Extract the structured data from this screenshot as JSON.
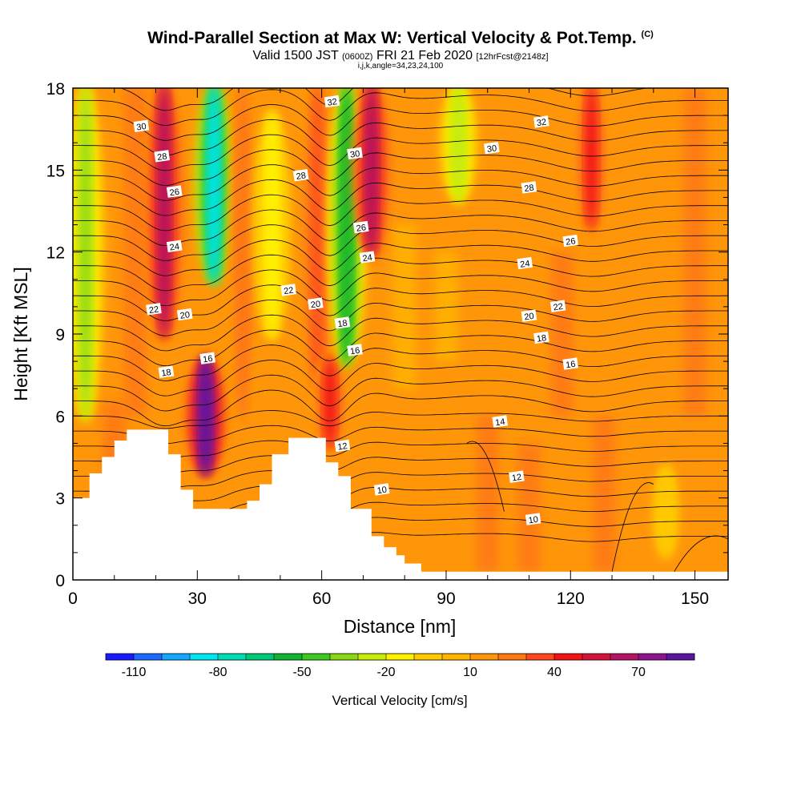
{
  "chart_data": {
    "type": "heatmap",
    "title": "Wind-Parallel Section at Max W: Vertical Velocity & Pot.Temp.",
    "title_mark": "(C)",
    "subtitle_main": "Valid 1500 JST",
    "subtitle_utc": "(0600Z)",
    "subtitle_date": "FRI 21 Feb 2020",
    "subtitle_fcst": "[12hrFcst@2148z]",
    "subtitle2": "i,j,k,angle=34,23,24,100",
    "xlabel": "Distance [nm]",
    "ylabel": "Height [Kft MSL]",
    "xlim": [
      0,
      158
    ],
    "ylim": [
      0,
      18
    ],
    "x_ticks": [
      "0",
      "30",
      "60",
      "90",
      "120",
      "150"
    ],
    "y_ticks": [
      "0",
      "3",
      "6",
      "9",
      "12",
      "15",
      "18"
    ],
    "colorbar": {
      "title": "Vertical Velocity [cm/s]",
      "labels": [
        "-110",
        "-80",
        "-50",
        "-20",
        "10",
        "40",
        "70"
      ],
      "colors": [
        "#1a1aff",
        "#1a6aff",
        "#12a8ff",
        "#00e6f0",
        "#00dcb4",
        "#00c878",
        "#10b432",
        "#3cc81e",
        "#8cd714",
        "#c8eb0a",
        "#fff000",
        "#ffc800",
        "#ffb400",
        "#ff960a",
        "#ff7814",
        "#ff461e",
        "#f01414",
        "#d2143c",
        "#b41464",
        "#8c148c",
        "#5a14a0"
      ]
    },
    "columns": [
      {
        "x": 3,
        "w": -40,
        "top": 18,
        "bottom": 6
      },
      {
        "x": 22,
        "w": 55,
        "top": 18,
        "bottom": 9
      },
      {
        "x": 32,
        "w": 80,
        "top": 8,
        "bottom": 4
      },
      {
        "x": 34,
        "w": -90,
        "top": 18,
        "bottom": 11
      },
      {
        "x": 41,
        "w": 20,
        "top": 18,
        "bottom": 6
      },
      {
        "x": 48,
        "w": -25,
        "top": 17,
        "bottom": 9
      },
      {
        "x": 59,
        "w": 25,
        "top": 18,
        "bottom": 7
      },
      {
        "x": 62,
        "w": 35,
        "top": 8,
        "bottom": 5
      },
      {
        "x": 66,
        "w": -60,
        "top": 18,
        "bottom": 8
      },
      {
        "x": 72,
        "w": 55,
        "top": 18,
        "bottom": 12
      },
      {
        "x": 93,
        "w": -30,
        "top": 18,
        "bottom": 14
      },
      {
        "x": 125,
        "w": 35,
        "top": 18,
        "bottom": 13
      },
      {
        "x": 143,
        "w": -15,
        "top": 4,
        "bottom": 1
      }
    ],
    "terrain": [
      [
        0,
        3
      ],
      [
        4,
        3
      ],
      [
        4,
        3.9
      ],
      [
        7,
        3.9
      ],
      [
        7,
        4.5
      ],
      [
        10,
        4.5
      ],
      [
        10,
        5.1
      ],
      [
        13,
        5.1
      ],
      [
        13,
        5.5
      ],
      [
        23,
        5.5
      ],
      [
        23,
        4.6
      ],
      [
        26,
        4.6
      ],
      [
        26,
        3.3
      ],
      [
        29,
        3.3
      ],
      [
        29,
        2.6
      ],
      [
        42,
        2.6
      ],
      [
        42,
        2.9
      ],
      [
        45,
        2.9
      ],
      [
        45,
        3.5
      ],
      [
        48,
        3.5
      ],
      [
        48,
        4.6
      ],
      [
        52,
        4.6
      ],
      [
        52,
        5.2
      ],
      [
        61,
        5.2
      ],
      [
        61,
        4.3
      ],
      [
        64,
        4.3
      ],
      [
        64,
        3.8
      ],
      [
        67,
        3.8
      ],
      [
        67,
        2.6
      ],
      [
        72,
        2.6
      ],
      [
        72,
        1.6
      ],
      [
        75,
        1.6
      ],
      [
        75,
        1.2
      ],
      [
        78,
        1.2
      ],
      [
        78,
        0.9
      ],
      [
        80,
        0.9
      ],
      [
        80,
        0.6
      ],
      [
        84,
        0.6
      ],
      [
        84,
        0.3
      ],
      [
        158,
        0.3
      ]
    ],
    "theta_contours": [
      {
        "label": "10",
        "base": 2.2,
        "label_x": 111
      },
      {
        "label": "12",
        "base": 3.7,
        "label_x": 107
      },
      {
        "label": "14",
        "base": 5.7,
        "label_x": 103
      },
      {
        "label": "16",
        "base": 8.2,
        "label_x": 120
      },
      {
        "label": "18",
        "base": 8.9,
        "label_x": 113
      },
      {
        "label": "20",
        "base": 9.6,
        "label_x": 110
      },
      {
        "label": "22",
        "base": 10.2,
        "label_x": 117
      },
      {
        "label": "24",
        "base": 11.5,
        "label_x": 109
      },
      {
        "label": "26",
        "base": 12.7,
        "label_x": 120
      },
      {
        "label": "28",
        "base": 14.3,
        "label_x": 110
      },
      {
        "label": "30",
        "base": 15.6,
        "label_x": 101
      },
      {
        "label": "32",
        "base": 16.8,
        "label_x": 113
      }
    ],
    "theta_labels_left": [
      {
        "label": "30",
        "x": 16.5,
        "y": 16.6
      },
      {
        "label": "28",
        "x": 21.5,
        "y": 15.5
      },
      {
        "label": "26",
        "x": 24.5,
        "y": 14.2
      },
      {
        "label": "24",
        "x": 24.5,
        "y": 12.2
      },
      {
        "label": "22",
        "x": 19.5,
        "y": 9.9
      },
      {
        "label": "20",
        "x": 27,
        "y": 9.7
      },
      {
        "label": "18",
        "x": 22.5,
        "y": 7.6
      },
      {
        "label": "16",
        "x": 32.5,
        "y": 8.1
      },
      {
        "label": "28",
        "x": 55,
        "y": 14.8
      },
      {
        "label": "22",
        "x": 52,
        "y": 10.6
      },
      {
        "label": "20",
        "x": 58.5,
        "y": 10.1
      },
      {
        "label": "18",
        "x": 65,
        "y": 9.4
      },
      {
        "label": "16",
        "x": 68,
        "y": 8.4
      },
      {
        "label": "32",
        "x": 62.5,
        "y": 17.5
      },
      {
        "label": "30",
        "x": 68,
        "y": 15.6
      },
      {
        "label": "26",
        "x": 69.5,
        "y": 12.9
      },
      {
        "label": "24",
        "x": 71,
        "y": 11.8
      },
      {
        "label": "12",
        "x": 65,
        "y": 4.9
      },
      {
        "label": "10",
        "x": 74.5,
        "y": 3.3
      }
    ]
  }
}
